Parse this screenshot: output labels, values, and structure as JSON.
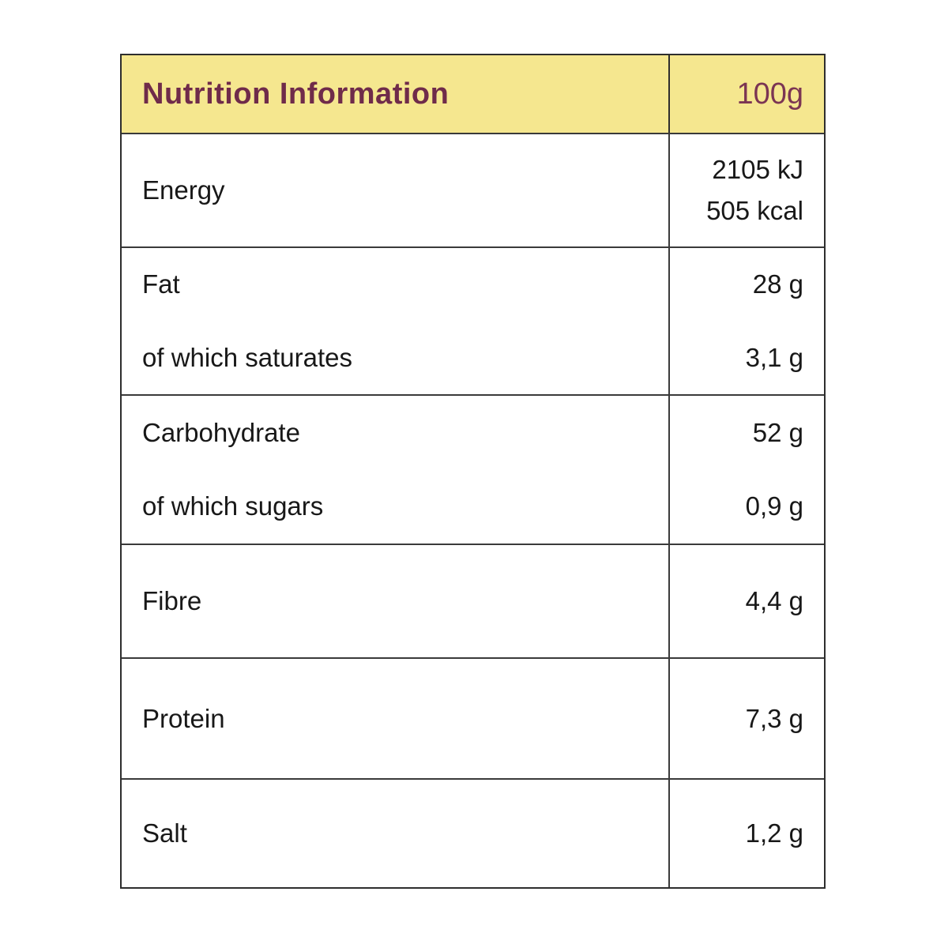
{
  "colors": {
    "header_bg": "#F5E78F",
    "header_text": "#6F2B4A",
    "border": "#2E2E2E",
    "body_text": "#181818"
  },
  "table": {
    "header": {
      "title": "Nutrition Information",
      "column": "100g"
    },
    "rows": [
      {
        "entries": [
          {
            "label": "Energy",
            "values": [
              "2105 kJ",
              "505 kcal"
            ]
          }
        ]
      },
      {
        "entries": [
          {
            "label": "Fat",
            "values": [
              "28 g"
            ]
          },
          {
            "label": "of which saturates",
            "values": [
              "3,1 g"
            ]
          }
        ]
      },
      {
        "entries": [
          {
            "label": "Carbohydrate",
            "values": [
              "52 g"
            ]
          },
          {
            "label": "of which sugars",
            "values": [
              "0,9 g"
            ]
          }
        ]
      },
      {
        "entries": [
          {
            "label": "Fibre",
            "values": [
              "4,4 g"
            ]
          }
        ]
      },
      {
        "entries": [
          {
            "label": "Protein",
            "values": [
              "7,3 g"
            ]
          }
        ]
      },
      {
        "entries": [
          {
            "label": "Salt",
            "values": [
              "1,2 g"
            ]
          }
        ]
      }
    ]
  }
}
